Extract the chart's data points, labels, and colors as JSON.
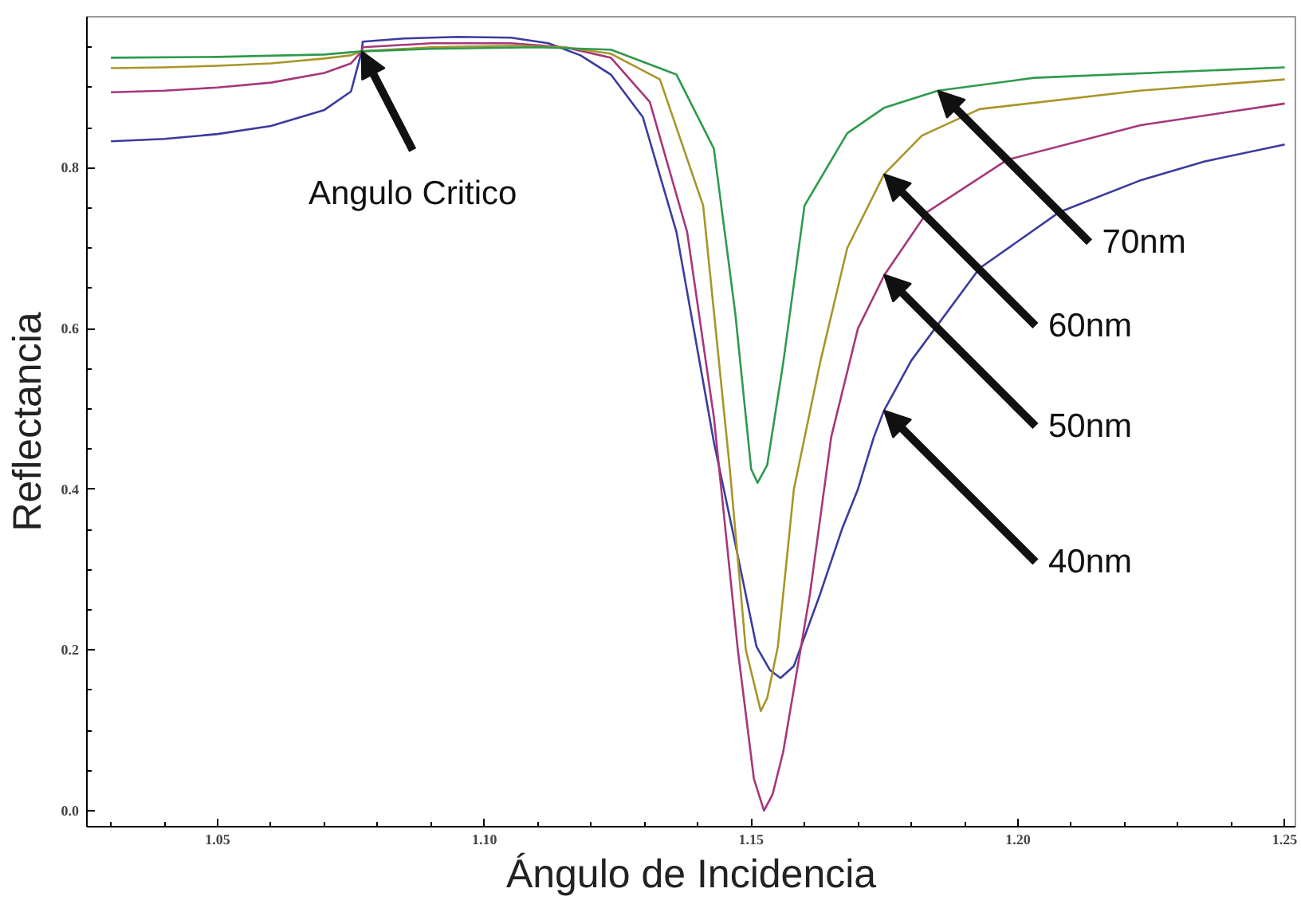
{
  "chart_data": {
    "type": "line",
    "xlabel": "Ángulo de Incidencia",
    "ylabel": "Reflectancia",
    "xlim": [
      1.0255,
      1.252
    ],
    "ylim": [
      -0.02,
      0.988
    ],
    "xticks": [
      {
        "value": 1.03,
        "label": null
      },
      {
        "value": 1.04,
        "label": null
      },
      1.05,
      {
        "value": 1.06,
        "label": null
      },
      {
        "value": 1.07,
        "label": null
      },
      {
        "value": 1.08,
        "label": null
      },
      {
        "value": 1.09,
        "label": null
      },
      {
        "value": 1.1,
        "label": "1.10"
      },
      {
        "value": 1.11,
        "label": null
      },
      {
        "value": 1.12,
        "label": null
      },
      {
        "value": 1.13,
        "label": null
      },
      {
        "value": 1.14,
        "label": null
      },
      1.15,
      {
        "value": 1.16,
        "label": null
      },
      {
        "value": 1.17,
        "label": null
      },
      {
        "value": 1.18,
        "label": null
      },
      {
        "value": 1.19,
        "label": null
      },
      {
        "value": 1.2,
        "label": "1.20"
      },
      {
        "value": 1.21,
        "label": null
      },
      {
        "value": 1.22,
        "label": null
      },
      {
        "value": 1.23,
        "label": null
      },
      {
        "value": 1.24,
        "label": null
      },
      1.25
    ],
    "yticks": [
      {
        "value": 0,
        "label": "0.0"
      },
      {
        "value": 0.05,
        "label": null
      },
      {
        "value": 0.1,
        "label": null
      },
      {
        "value": 0.15,
        "label": null
      },
      0.2,
      {
        "value": 0.25,
        "label": null
      },
      {
        "value": 0.3,
        "label": null
      },
      {
        "value": 0.35,
        "label": null
      },
      0.4,
      {
        "value": 0.45,
        "label": null
      },
      {
        "value": 0.5,
        "label": null
      },
      {
        "value": 0.55,
        "label": null
      },
      0.6,
      {
        "value": 0.65,
        "label": null
      },
      {
        "value": 0.7,
        "label": null
      },
      {
        "value": 0.75,
        "label": null
      },
      0.8,
      {
        "value": 0.85,
        "label": null
      },
      {
        "value": 0.9,
        "label": null
      },
      {
        "value": 0.95,
        "label": null
      }
    ],
    "grid": false,
    "marker": "none",
    "line_style": "solid",
    "series": [
      {
        "color": "#3b3b9f",
        "x": [
          1.03,
          1.04,
          1.05,
          1.06,
          1.07,
          1.075,
          1.077,
          1.0772,
          1.085,
          1.095,
          1.105,
          1.112,
          1.118,
          1.1237,
          1.1297,
          1.136,
          1.143,
          1.147,
          1.151,
          1.1535,
          1.1555,
          1.158,
          1.1629,
          1.167,
          1.17,
          1.173,
          1.1749,
          1.18,
          1.1928,
          1.2078,
          1.2228,
          1.235,
          1.25
        ],
        "values": [
          0.833,
          0.836,
          0.842,
          0.852,
          0.872,
          0.895,
          0.945,
          0.957,
          0.961,
          0.963,
          0.962,
          0.955,
          0.94,
          0.916,
          0.863,
          0.72,
          0.459,
          0.333,
          0.204,
          0.175,
          0.165,
          0.18,
          0.269,
          0.35,
          0.4,
          0.465,
          0.498,
          0.56,
          0.675,
          0.745,
          0.784,
          0.808,
          0.829
        ]
      },
      {
        "color": "#a6377a",
        "x": [
          1.03,
          1.04,
          1.05,
          1.06,
          1.07,
          1.075,
          1.077,
          1.0772,
          1.09,
          1.105,
          1.115,
          1.1237,
          1.131,
          1.138,
          1.143,
          1.1475,
          1.1505,
          1.1524,
          1.154,
          1.156,
          1.161,
          1.165,
          1.17,
          1.175,
          1.183,
          1.198,
          1.223,
          1.25
        ],
        "values": [
          0.894,
          0.896,
          0.9,
          0.906,
          0.918,
          0.93,
          0.945,
          0.95,
          0.955,
          0.955,
          0.95,
          0.937,
          0.882,
          0.72,
          0.49,
          0.2,
          0.04,
          0.0,
          0.02,
          0.073,
          0.269,
          0.465,
          0.6,
          0.667,
          0.745,
          0.81,
          0.853,
          0.88
        ]
      },
      {
        "color": "#a8952a",
        "x": [
          1.03,
          1.04,
          1.05,
          1.06,
          1.07,
          1.075,
          1.077,
          1.09,
          1.105,
          1.115,
          1.1237,
          1.1329,
          1.141,
          1.146,
          1.149,
          1.1518,
          1.153,
          1.155,
          1.158,
          1.1629,
          1.168,
          1.1749,
          1.182,
          1.1928,
          1.2228,
          1.25
        ],
        "values": [
          0.924,
          0.925,
          0.927,
          0.93,
          0.936,
          0.94,
          0.945,
          0.95,
          0.952,
          0.95,
          0.942,
          0.91,
          0.753,
          0.425,
          0.2,
          0.124,
          0.14,
          0.204,
          0.4,
          0.557,
          0.7,
          0.792,
          0.84,
          0.873,
          0.896,
          0.91
        ]
      },
      {
        "color": "#2e9a4d",
        "x": [
          1.03,
          1.05,
          1.07,
          1.077,
          1.09,
          1.11,
          1.1237,
          1.136,
          1.143,
          1.147,
          1.15,
          1.1512,
          1.153,
          1.156,
          1.16,
          1.168,
          1.175,
          1.185,
          1.203,
          1.25
        ],
        "values": [
          0.937,
          0.938,
          0.941,
          0.945,
          0.948,
          0.95,
          0.947,
          0.916,
          0.824,
          0.62,
          0.425,
          0.408,
          0.43,
          0.557,
          0.753,
          0.843,
          0.875,
          0.896,
          0.912,
          0.925
        ]
      }
    ],
    "annotations": [
      {
        "text": "Angulo Critico",
        "x": 1.077,
        "y": 0.945
      },
      {
        "text": "70nm",
        "x": 1.185,
        "y": 0.896
      },
      {
        "text": "60nm",
        "x": 1.1749,
        "y": 0.792
      },
      {
        "text": "50nm",
        "x": 1.1749,
        "y": 0.667
      },
      {
        "text": "40nm",
        "x": 1.1749,
        "y": 0.498
      }
    ]
  }
}
